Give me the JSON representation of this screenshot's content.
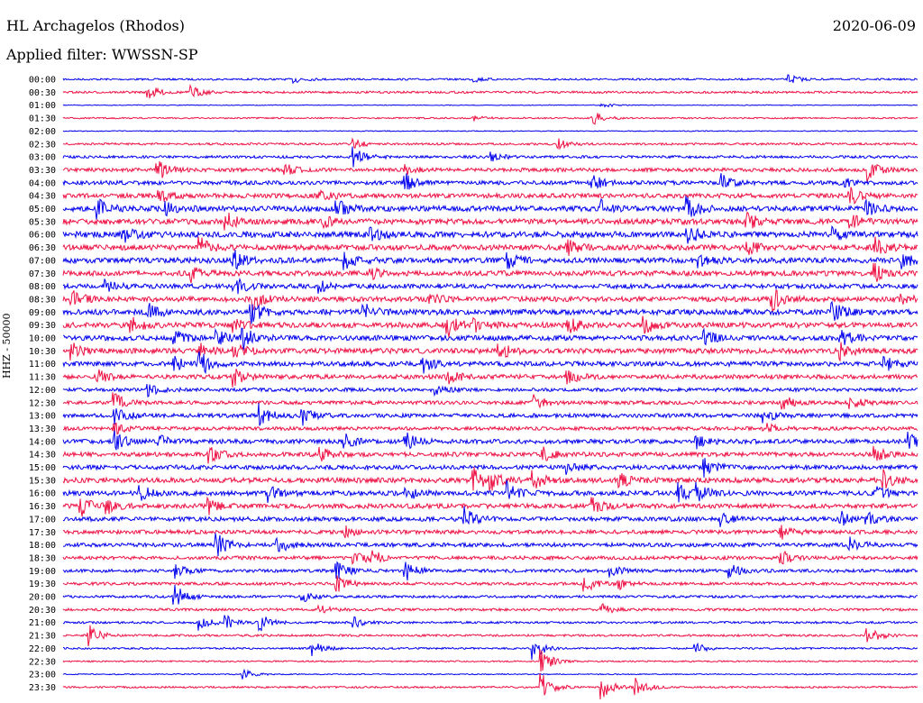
{
  "header": {
    "station": "HL Archagelos (Rhodos)",
    "filter": "Applied filter: WWSSN-SP",
    "date": "2020-06-09"
  },
  "axis": {
    "ylabel": "HHZ - 50000"
  },
  "colors": {
    "traceA": "#0000ee",
    "traceB": "#ee1144"
  },
  "chart_data": {
    "type": "line",
    "title": "HL Archagelos (Rhodos)",
    "ylabel": "HHZ - 50000",
    "row_labels": [
      "00:00",
      "00:30",
      "01:00",
      "01:30",
      "02:00",
      "02:30",
      "03:00",
      "03:30",
      "04:00",
      "04:30",
      "05:00",
      "05:30",
      "06:00",
      "06:30",
      "07:00",
      "07:30",
      "08:00",
      "08:30",
      "09:00",
      "09:30",
      "10:00",
      "10:30",
      "11:00",
      "11:30",
      "12:00",
      "12:30",
      "13:00",
      "13:30",
      "14:00",
      "14:30",
      "15:00",
      "15:30",
      "16:00",
      "16:30",
      "17:00",
      "17:30",
      "18:00",
      "18:30",
      "19:00",
      "19:30",
      "20:00",
      "20:30",
      "21:00",
      "21:30",
      "22:00",
      "22:30",
      "23:00",
      "23:30"
    ],
    "series_colors": [
      "#0000ee",
      "#ee1144"
    ],
    "noise_level": [
      1.0,
      1.2,
      0.4,
      0.8,
      0.5,
      1.2,
      1.5,
      2.0,
      2.2,
      2.5,
      3.0,
      3.0,
      3.2,
      3.0,
      3.0,
      2.8,
      2.5,
      2.8,
      3.0,
      3.0,
      2.8,
      2.8,
      2.6,
      2.4,
      2.0,
      2.0,
      2.2,
      2.0,
      2.4,
      2.4,
      2.4,
      2.8,
      2.6,
      2.6,
      2.4,
      2.2,
      2.2,
      2.0,
      1.8,
      1.6,
      1.4,
      1.4,
      1.2,
      1.2,
      1.0,
      0.8,
      0.6,
      1.0
    ],
    "events": [
      [
        [
          0.27,
          4
        ],
        [
          0.48,
          3
        ],
        [
          0.85,
          5
        ]
      ],
      [
        [
          0.1,
          8
        ],
        [
          0.15,
          7
        ]
      ],
      [
        [
          0.63,
          3
        ]
      ],
      [
        [
          0.62,
          8
        ],
        [
          0.48,
          3
        ]
      ],
      [],
      [
        [
          0.34,
          5
        ],
        [
          0.58,
          6
        ]
      ],
      [
        [
          0.34,
          10
        ],
        [
          0.5,
          5
        ]
      ],
      [
        [
          0.11,
          12
        ],
        [
          0.26,
          6
        ],
        [
          0.4,
          5
        ],
        [
          0.94,
          14
        ]
      ],
      [
        [
          0.4,
          10
        ],
        [
          0.62,
          8
        ],
        [
          0.77,
          10
        ],
        [
          0.91,
          7
        ]
      ],
      [
        [
          0.11,
          10
        ],
        [
          0.3,
          8
        ],
        [
          0.92,
          12
        ]
      ],
      [
        [
          0.04,
          10
        ],
        [
          0.12,
          8
        ],
        [
          0.32,
          10
        ],
        [
          0.63,
          8
        ],
        [
          0.73,
          12
        ],
        [
          0.94,
          8
        ]
      ],
      [
        [
          0.19,
          10
        ],
        [
          0.3,
          8
        ],
        [
          0.8,
          9
        ],
        [
          0.92,
          8
        ]
      ],
      [
        [
          0.07,
          8
        ],
        [
          0.36,
          7
        ],
        [
          0.73,
          10
        ],
        [
          0.9,
          7
        ]
      ],
      [
        [
          0.16,
          10
        ],
        [
          0.59,
          8
        ],
        [
          0.8,
          8
        ],
        [
          0.95,
          10
        ]
      ],
      [
        [
          0.2,
          10
        ],
        [
          0.33,
          8
        ],
        [
          0.52,
          8
        ],
        [
          0.74,
          8
        ],
        [
          0.98,
          9
        ]
      ],
      [
        [
          0.15,
          8
        ],
        [
          0.36,
          6
        ],
        [
          0.95,
          10
        ]
      ],
      [
        [
          0.05,
          8
        ],
        [
          0.2,
          10
        ],
        [
          0.3,
          6
        ]
      ],
      [
        [
          0.01,
          10
        ],
        [
          0.22,
          12
        ],
        [
          0.43,
          6
        ],
        [
          0.83,
          12
        ],
        [
          0.98,
          6
        ]
      ],
      [
        [
          0.1,
          8
        ],
        [
          0.22,
          12
        ],
        [
          0.35,
          10
        ],
        [
          0.9,
          10
        ]
      ],
      [
        [
          0.08,
          8
        ],
        [
          0.2,
          6
        ],
        [
          0.45,
          12
        ],
        [
          0.48,
          8
        ],
        [
          0.59,
          10
        ],
        [
          0.68,
          10
        ]
      ],
      [
        [
          0.13,
          10
        ],
        [
          0.18,
          8
        ],
        [
          0.21,
          12
        ],
        [
          0.75,
          8
        ],
        [
          0.91,
          10
        ]
      ],
      [
        [
          0.01,
          10
        ],
        [
          0.16,
          8
        ],
        [
          0.2,
          10
        ],
        [
          0.51,
          10
        ],
        [
          0.91,
          8
        ]
      ],
      [
        [
          0.13,
          8
        ],
        [
          0.16,
          14
        ],
        [
          0.42,
          10
        ],
        [
          0.96,
          10
        ]
      ],
      [
        [
          0.04,
          8
        ],
        [
          0.2,
          10
        ],
        [
          0.45,
          8
        ],
        [
          0.59,
          8
        ]
      ],
      [
        [
          0.1,
          6
        ],
        [
          0.43,
          8
        ]
      ],
      [
        [
          0.06,
          10
        ],
        [
          0.55,
          10
        ],
        [
          0.84,
          10
        ],
        [
          0.92,
          8
        ]
      ],
      [
        [
          0.06,
          10
        ],
        [
          0.23,
          12
        ],
        [
          0.28,
          10
        ],
        [
          0.82,
          8
        ]
      ],
      [
        [
          0.06,
          6
        ],
        [
          0.82,
          8
        ]
      ],
      [
        [
          0.06,
          10
        ],
        [
          0.11,
          8
        ],
        [
          0.33,
          8
        ],
        [
          0.4,
          10
        ],
        [
          0.74,
          8
        ],
        [
          0.99,
          12
        ]
      ],
      [
        [
          0.17,
          10
        ],
        [
          0.3,
          8
        ],
        [
          0.56,
          8
        ],
        [
          0.95,
          8
        ]
      ],
      [
        [
          0.59,
          6
        ],
        [
          0.75,
          12
        ]
      ],
      [
        [
          0.48,
          14
        ],
        [
          0.5,
          10
        ],
        [
          0.55,
          10
        ],
        [
          0.65,
          8
        ],
        [
          0.96,
          10
        ]
      ],
      [
        [
          0.09,
          10
        ],
        [
          0.24,
          10
        ],
        [
          0.4,
          10
        ],
        [
          0.52,
          12
        ],
        [
          0.72,
          10
        ],
        [
          0.74,
          10
        ],
        [
          0.95,
          8
        ]
      ],
      [
        [
          0.02,
          12
        ],
        [
          0.05,
          8
        ],
        [
          0.17,
          8
        ],
        [
          0.62,
          8
        ]
      ],
      [
        [
          0.47,
          12
        ],
        [
          0.77,
          8
        ],
        [
          0.91,
          8
        ],
        [
          0.94,
          8
        ]
      ],
      [
        [
          0.33,
          6
        ],
        [
          0.84,
          8
        ]
      ],
      [
        [
          0.18,
          12
        ],
        [
          0.25,
          10
        ],
        [
          0.92,
          8
        ]
      ],
      [
        [
          0.34,
          10
        ],
        [
          0.36,
          8
        ],
        [
          0.84,
          8
        ]
      ],
      [
        [
          0.13,
          8
        ],
        [
          0.32,
          10
        ],
        [
          0.4,
          12
        ],
        [
          0.64,
          8
        ],
        [
          0.78,
          8
        ]
      ],
      [
        [
          0.32,
          10
        ],
        [
          0.61,
          10
        ],
        [
          0.65,
          6
        ]
      ],
      [
        [
          0.13,
          14
        ],
        [
          0.28,
          6
        ]
      ],
      [
        [
          0.3,
          6
        ],
        [
          0.63,
          6
        ]
      ],
      [
        [
          0.16,
          8
        ],
        [
          0.19,
          8
        ],
        [
          0.23,
          10
        ],
        [
          0.34,
          6
        ]
      ],
      [
        [
          0.03,
          12
        ],
        [
          0.94,
          12
        ]
      ],
      [
        [
          0.29,
          10
        ],
        [
          0.55,
          12
        ],
        [
          0.74,
          6
        ]
      ],
      [
        [
          0.56,
          14
        ]
      ],
      [
        [
          0.21,
          6
        ]
      ],
      [
        [
          0.56,
          16
        ],
        [
          0.63,
          14
        ],
        [
          0.67,
          12
        ]
      ]
    ]
  }
}
